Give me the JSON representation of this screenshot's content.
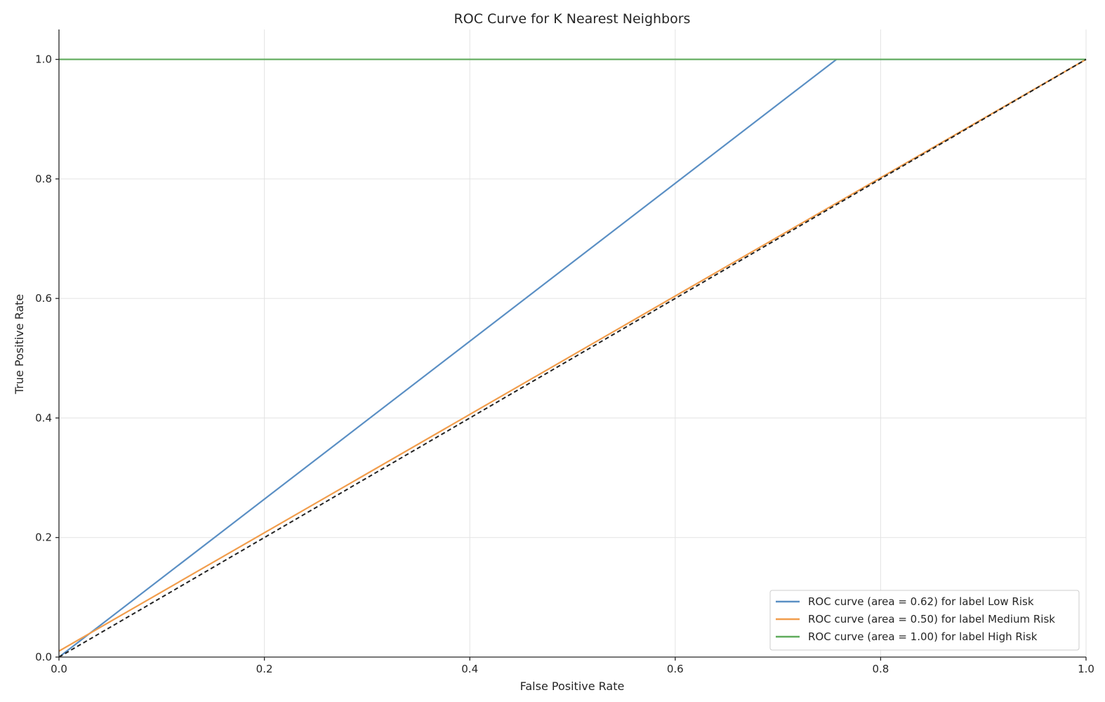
{
  "chart_data": {
    "type": "line",
    "title": "ROC Curve for K Nearest Neighbors",
    "xlabel": "False Positive Rate",
    "ylabel": "True Positive Rate",
    "xlim": [
      0.0,
      1.0
    ],
    "ylim": [
      0.0,
      1.05
    ],
    "xticks": [
      "0.0",
      "0.2",
      "0.4",
      "0.6",
      "0.8",
      "1.0"
    ],
    "yticks": [
      "0.0",
      "0.2",
      "0.4",
      "0.6",
      "0.8",
      "1.0"
    ],
    "grid": true,
    "legend_position": "lower right",
    "series": [
      {
        "name": "ROC curve (area = 0.62) for label Low Risk",
        "color": "#5a8fc4",
        "x": [
          0.0,
          0.757,
          1.0
        ],
        "y": [
          0.0,
          1.0,
          1.0
        ]
      },
      {
        "name": "ROC curve (area = 0.50) for label Medium Risk",
        "color": "#f19d4c",
        "x": [
          0.0,
          1.0
        ],
        "y": [
          0.01,
          1.0
        ]
      },
      {
        "name": "ROC curve (area = 1.00) for label High Risk",
        "color": "#5fab5b",
        "x": [
          0.0,
          1.0
        ],
        "y": [
          1.0,
          1.0
        ]
      }
    ],
    "reference_line": {
      "color": "#222222",
      "style": "dashed",
      "x": [
        0.0,
        1.0
      ],
      "y": [
        0.0,
        1.0
      ]
    }
  }
}
